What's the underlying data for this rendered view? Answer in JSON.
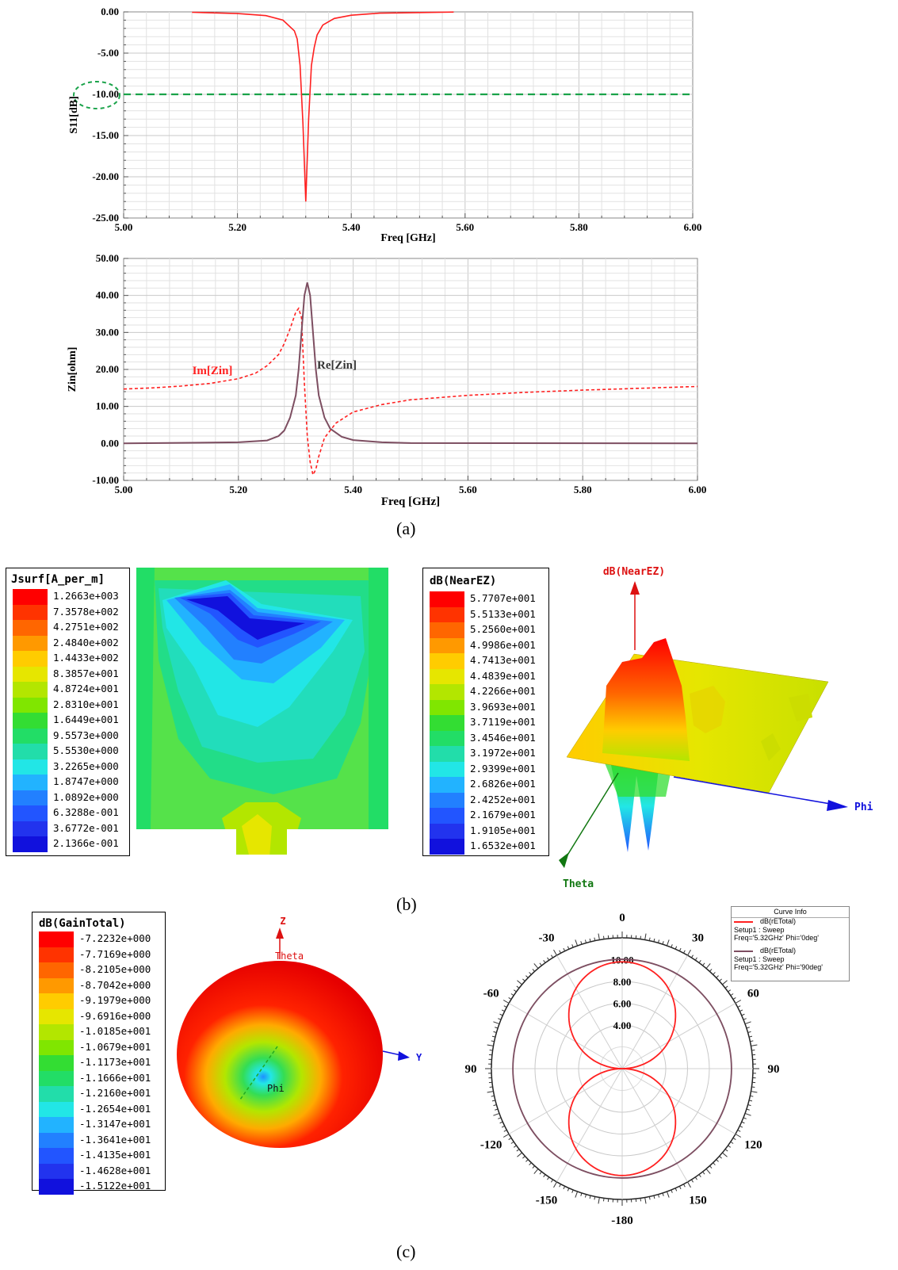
{
  "captions": {
    "a": "(a)",
    "b": "(b)",
    "c": "(c)"
  },
  "chart_data": [
    {
      "type": "line",
      "xlabel": "Freq [GHz]",
      "ylabel": "S11[dB]",
      "xlim": [
        5.0,
        6.0
      ],
      "ylim": [
        -25.0,
        0.0
      ],
      "x_ticks": [
        "5.00",
        "5.20",
        "5.40",
        "5.60",
        "5.80",
        "6.00"
      ],
      "y_ticks": [
        "0.00",
        "-5.00",
        "-10.00",
        "-15.00",
        "-20.00",
        "-25.00"
      ],
      "reference_line": {
        "y": -10.0,
        "color": "#1aa34a"
      },
      "series": [
        {
          "color": "#ff2020",
          "x": [
            5.12,
            5.2,
            5.25,
            5.28,
            5.3,
            5.305,
            5.31,
            5.315,
            5.32,
            5.325,
            5.33,
            5.335,
            5.34,
            5.35,
            5.37,
            5.4,
            5.45,
            5.58
          ],
          "y": [
            -0.05,
            -0.2,
            -0.45,
            -1.0,
            -2.3,
            -3.3,
            -6.5,
            -13.5,
            -23.0,
            -13.0,
            -6.5,
            -4.3,
            -2.8,
            -1.6,
            -0.8,
            -0.4,
            -0.15,
            -0.02
          ]
        }
      ]
    },
    {
      "type": "line",
      "xlabel": "Freq [GHz]",
      "ylabel": "Zin[ohm]",
      "xlim": [
        5.0,
        6.0
      ],
      "ylim": [
        -10.0,
        50.0
      ],
      "x_ticks": [
        "5.00",
        "5.20",
        "5.40",
        "5.60",
        "5.80",
        "6.00"
      ],
      "y_ticks": [
        "50.00",
        "40.00",
        "30.00",
        "20.00",
        "10.00",
        "0.00",
        "-10.00"
      ],
      "series": [
        {
          "name": "Im[Zin]",
          "color": "#ff2020",
          "dashed": true,
          "x": [
            5.0,
            5.05,
            5.1,
            5.15,
            5.2,
            5.23,
            5.25,
            5.27,
            5.28,
            5.29,
            5.3,
            5.305,
            5.31,
            5.315,
            5.32,
            5.325,
            5.33,
            5.335,
            5.34,
            5.35,
            5.37,
            5.4,
            5.45,
            5.5,
            5.6,
            5.7,
            5.8,
            5.9,
            6.0
          ],
          "y": [
            14.7,
            15.0,
            15.5,
            16.2,
            17.5,
            19.0,
            21.0,
            24.0,
            27.0,
            31.0,
            35.5,
            36.5,
            34.0,
            16.0,
            2.0,
            -5.0,
            -8.5,
            -7.0,
            -3.5,
            1.5,
            5.5,
            8.5,
            10.5,
            11.8,
            13.0,
            13.8,
            14.4,
            14.9,
            15.4
          ]
        },
        {
          "name": "Re[Zin]",
          "color": "#7d4e61",
          "dashed": false,
          "x": [
            5.0,
            5.2,
            5.25,
            5.27,
            5.28,
            5.29,
            5.3,
            5.305,
            5.31,
            5.315,
            5.32,
            5.325,
            5.33,
            5.335,
            5.34,
            5.35,
            5.36,
            5.38,
            5.4,
            5.45,
            5.5,
            6.0
          ],
          "y": [
            0.0,
            0.3,
            0.8,
            2.0,
            3.5,
            7.0,
            13.0,
            20.0,
            30.0,
            40.0,
            43.5,
            40.0,
            30.0,
            20.0,
            13.0,
            7.0,
            4.0,
            1.8,
            0.9,
            0.3,
            0.1,
            0.0
          ]
        }
      ]
    },
    {
      "type": "heatmap",
      "title": "Jsurf[A_per_m]",
      "legend_values": [
        "1.2663e+003",
        "7.3578e+002",
        "4.2751e+002",
        "2.4840e+002",
        "1.4433e+002",
        "8.3857e+001",
        "4.8724e+001",
        "2.8310e+001",
        "1.6449e+001",
        "9.5573e+000",
        "5.5530e+000",
        "3.2265e+000",
        "1.8747e+000",
        "1.0892e+000",
        "6.3288e-001",
        "3.6772e-001",
        "2.1366e-001"
      ]
    },
    {
      "type": "heatmap",
      "title": "dB(NearEZ)",
      "legend_values": [
        "5.7707e+001",
        "5.5133e+001",
        "5.2560e+001",
        "4.9986e+001",
        "4.7413e+001",
        "4.4839e+001",
        "4.2266e+001",
        "3.9693e+001",
        "3.7119e+001",
        "3.4546e+001",
        "3.1972e+001",
        "2.9399e+001",
        "2.6826e+001",
        "2.4252e+001",
        "2.1679e+001",
        "1.9105e+001",
        "1.6532e+001"
      ],
      "axis_labels": {
        "z": "dB(NearEZ)",
        "phi": "Phi",
        "theta": "Theta"
      }
    },
    {
      "type": "heatmap",
      "title": "dB(GainTotal)",
      "legend_values": [
        "-7.2232e+000",
        "-7.7169e+000",
        "-8.2105e+000",
        "-8.7042e+000",
        "-9.1979e+000",
        "-9.6916e+000",
        "-1.0185e+001",
        "-1.0679e+001",
        "-1.1173e+001",
        "-1.1666e+001",
        "-1.2160e+001",
        "-1.2654e+001",
        "-1.3147e+001",
        "-1.3641e+001",
        "-1.4135e+001",
        "-1.4628e+001",
        "-1.5122e+001"
      ],
      "axis_labels": {
        "z": "Z",
        "theta": "Theta",
        "y": "Y",
        "phi": "Phi"
      }
    },
    {
      "type": "line",
      "subtype": "polar",
      "angle_labels": [
        "0",
        "30",
        "60",
        "90",
        "120",
        "150",
        "-180",
        "-150",
        "-120",
        "90",
        "-60",
        "-30"
      ],
      "radial_labels": [
        "10.00",
        "8.00",
        "6.00",
        "4.00"
      ],
      "radial_values": [
        10,
        8,
        6,
        4
      ],
      "legend": {
        "title": "Curve Info",
        "entries": [
          {
            "name": "dB(rETotal)",
            "line2": "Setup1 : Sweep",
            "line3": "Freq='5.32GHz' Phi='0deg'",
            "color": "#ff2020"
          },
          {
            "name": "dB(rETotal)",
            "line2": "Setup1 : Sweep",
            "line3": "Freq='5.32GHz' Phi='90deg'",
            "color": "#7d4e61"
          }
        ]
      }
    }
  ],
  "colors": {
    "scale": [
      "#ff0000",
      "#ff3300",
      "#ff6600",
      "#ff9900",
      "#ffcc00",
      "#e6e600",
      "#b3e600",
      "#80e600",
      "#33dd33",
      "#22dd66",
      "#22ddaa",
      "#22e6e6",
      "#22b3ff",
      "#2280ff",
      "#2255ff",
      "#2233ee",
      "#1111dd"
    ]
  }
}
